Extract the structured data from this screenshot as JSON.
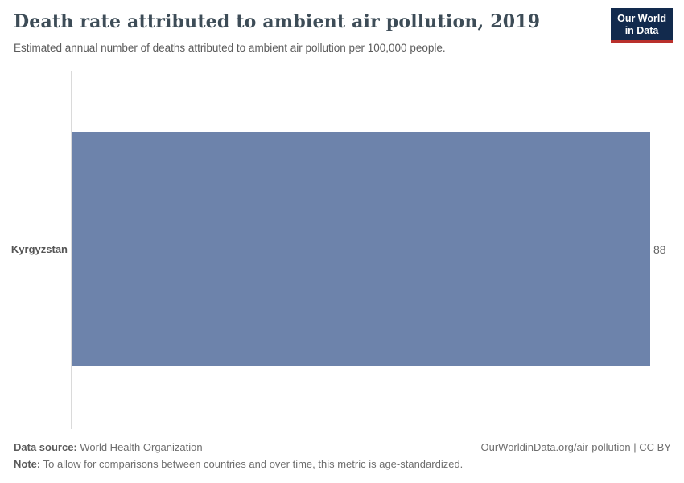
{
  "header": {
    "title": "Death rate attributed to ambient air pollution, 2019",
    "subtitle": "Estimated annual number of deaths attributed to ambient air pollution per 100,000 people.",
    "logo": {
      "line1": "Our World",
      "line2": "in Data"
    }
  },
  "chart_data": {
    "type": "bar",
    "orientation": "horizontal",
    "title": "Death rate attributed to ambient air pollution, 2019",
    "categories": [
      "Kyrgyzstan"
    ],
    "values": [
      88
    ],
    "xlabel": "",
    "ylabel": "",
    "xlim": [
      0,
      88
    ],
    "grid": false,
    "legend": false,
    "bar_color": "#6d83ab"
  },
  "footer": {
    "datasource_label": "Data source:",
    "datasource_value": " World Health Organization",
    "note_label": "Note:",
    "note_value": " To allow for comparisons between countries and over time, this metric is age-standardized.",
    "attribution": "OurWorldinData.org/air-pollution | CC BY"
  },
  "colors": {
    "bar": "#6d83ab",
    "axis_line": "#dadada",
    "logo_navy": "#122a4d",
    "logo_red": "#b9302c"
  }
}
